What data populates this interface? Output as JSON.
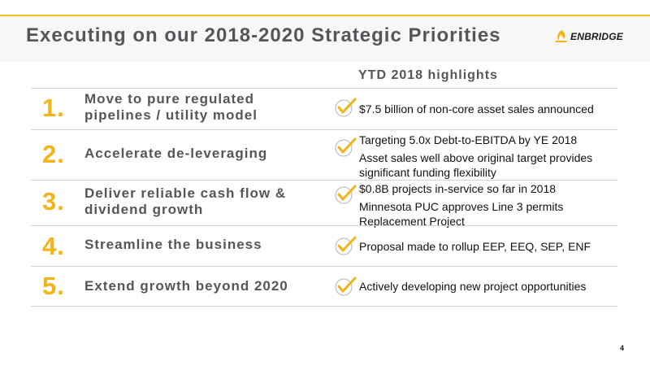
{
  "header": {
    "title": "Executing on our 2018-2020 Strategic Priorities",
    "logo_text": "ENBRIDGE",
    "logo_icon": "enbridge-flame-logo",
    "accent_color": "#f2b418"
  },
  "highlights_heading": "YTD 2018 highlights",
  "priorities": [
    {
      "number": "1.",
      "label": "Move to pure regulated pipelines / utility model",
      "highlights": [
        "$7.5 billion of non-core asset sales announced"
      ]
    },
    {
      "number": "2.",
      "label": "Accelerate de-leveraging",
      "highlights": [
        "Targeting 5.0x Debt-to-EBITDA by YE 2018",
        "Asset sales well above original target provides significant funding flexibility"
      ]
    },
    {
      "number": "3.",
      "label": "Deliver reliable cash flow & dividend growth",
      "highlights": [
        "$0.8B projects in-service so far in 2018",
        "Minnesota PUC approves Line 3 permits Replacement Project"
      ]
    },
    {
      "number": "4.",
      "label": "Streamline the business",
      "highlights": [
        "Proposal made to rollup EEP, EEQ, SEP, ENF"
      ]
    },
    {
      "number": "5.",
      "label": "Extend growth beyond 2020",
      "highlights": [
        "Actively developing new project opportunities"
      ]
    }
  ],
  "check_icon": "checkmark-icon",
  "page_number": "4"
}
